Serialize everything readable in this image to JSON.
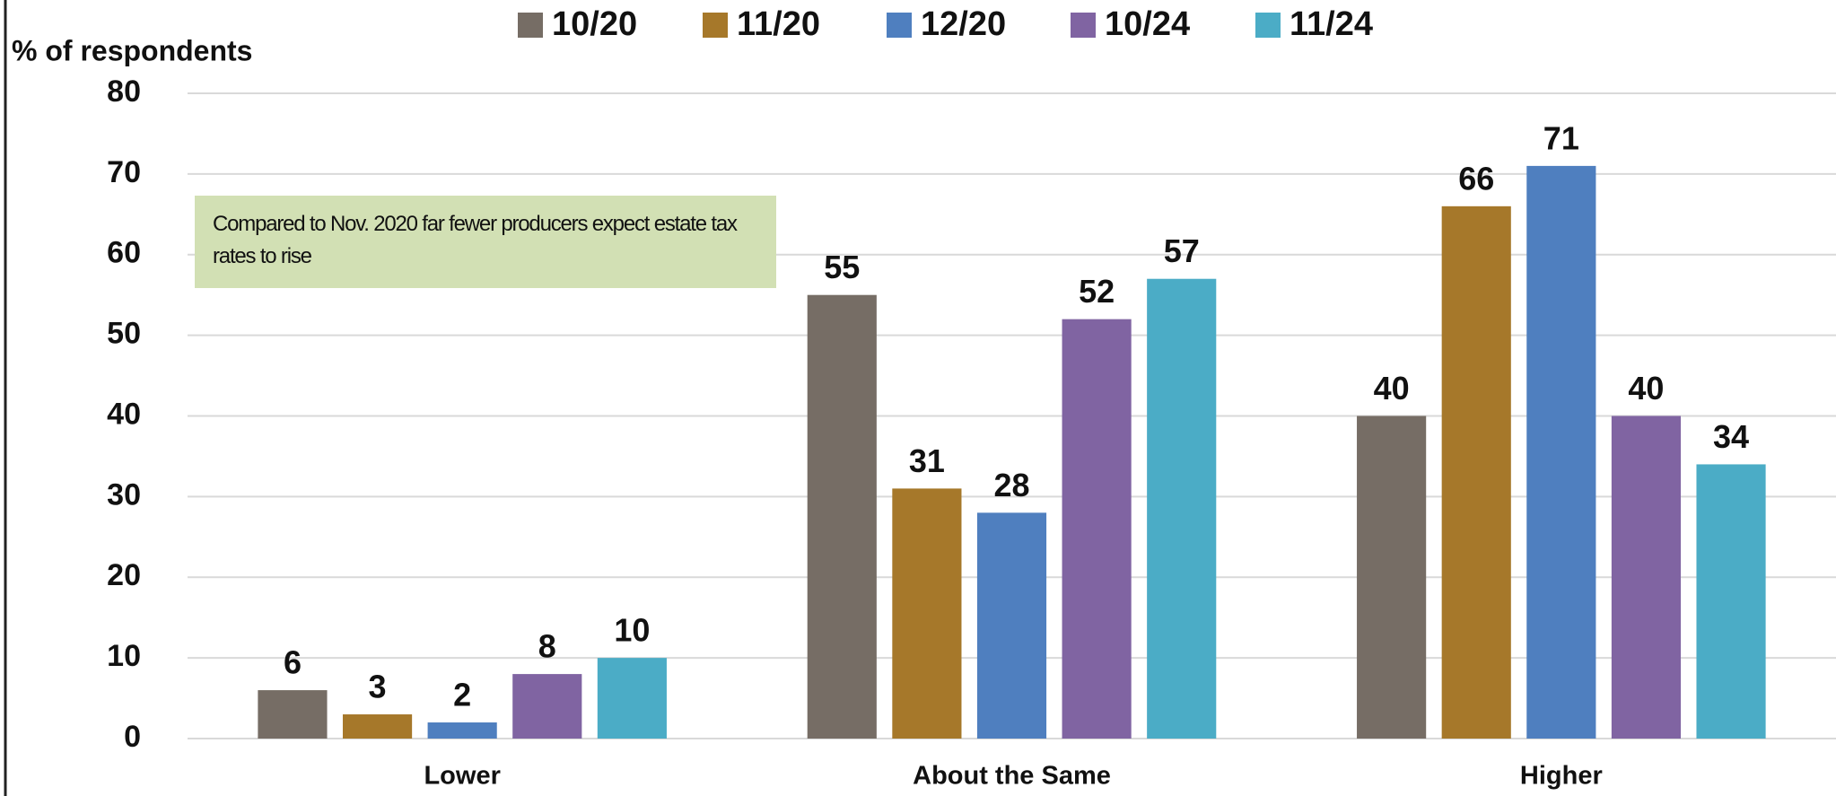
{
  "chart_data": {
    "type": "bar",
    "y_label": "% of respondents",
    "annotation": "Compared to Nov. 2020 far fewer producers expect estate tax rates to rise",
    "categories": [
      "Lower",
      "About the Same",
      "Higher"
    ],
    "series": [
      {
        "name": "10/20",
        "color": "#766d65",
        "values": [
          6,
          55,
          40
        ]
      },
      {
        "name": "11/20",
        "color": "#a6782a",
        "values": [
          3,
          31,
          66
        ]
      },
      {
        "name": "12/20",
        "color": "#4f7fbf",
        "values": [
          2,
          28,
          71
        ]
      },
      {
        "name": "10/24",
        "color": "#8064a2",
        "values": [
          8,
          52,
          40
        ]
      },
      {
        "name": "11/24",
        "color": "#4bacc6",
        "values": [
          10,
          57,
          34
        ]
      }
    ],
    "ylim": [
      0,
      80
    ],
    "yticks": [
      0,
      10,
      20,
      30,
      40,
      50,
      60,
      70,
      80
    ],
    "grid": true,
    "legend": "top"
  }
}
